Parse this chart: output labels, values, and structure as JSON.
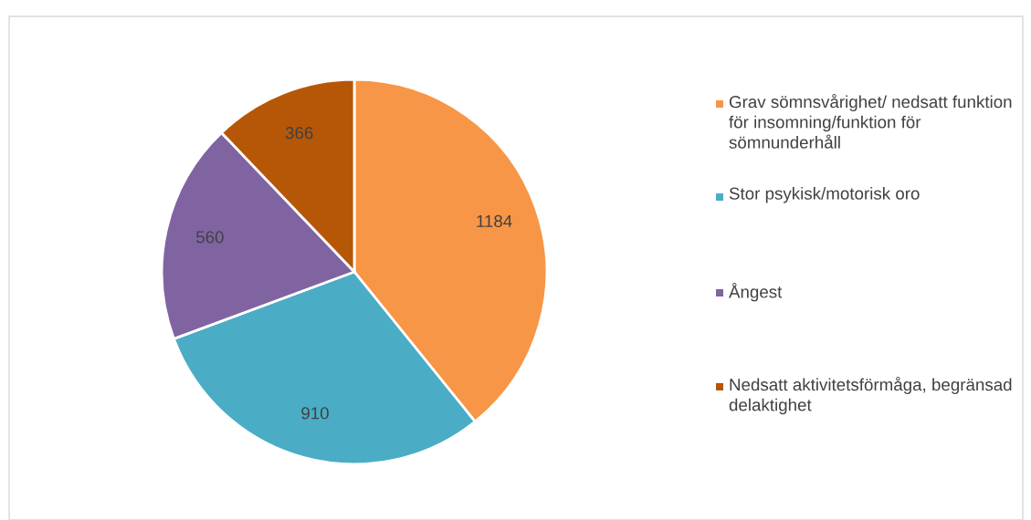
{
  "chart_data": {
    "type": "pie",
    "categories": [
      "Grav sömnsvårighet/ nedsatt funktion för insomning/funktion för sömnunderhåll",
      "Stor psykisk/motorisk oro",
      "Ångest",
      "Nedsatt aktivitetsförmåga, begränsad delaktighet"
    ],
    "values": [
      1184,
      910,
      560,
      366
    ],
    "colors": [
      "#f79646",
      "#4bacc6",
      "#8064a2",
      "#b65708"
    ],
    "data_labels": true,
    "legend": "right"
  }
}
